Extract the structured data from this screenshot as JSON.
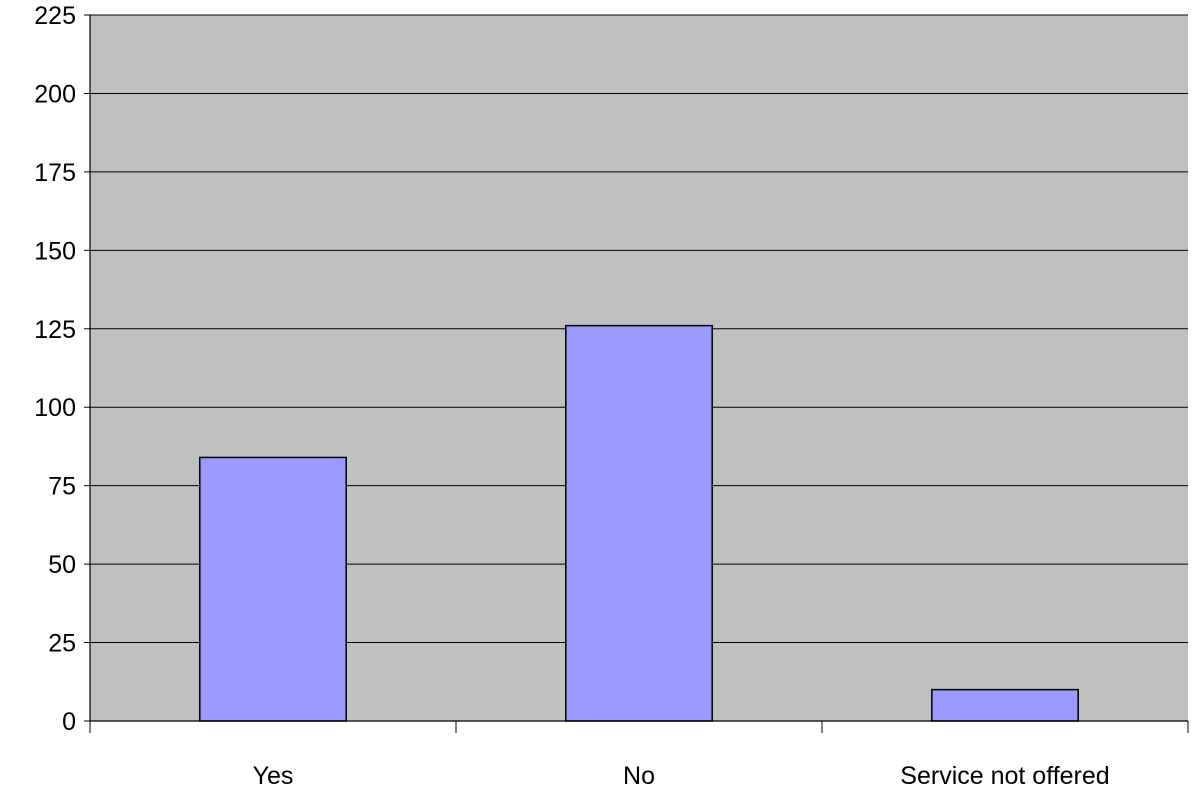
{
  "chart_data": {
    "type": "bar",
    "title": "",
    "xlabel": "",
    "ylabel": "",
    "categories": [
      "Yes",
      "No",
      "Service not offered"
    ],
    "values": [
      84,
      126,
      10
    ],
    "ylim": [
      0,
      225
    ],
    "yticks": [
      0,
      25,
      50,
      75,
      100,
      125,
      150,
      175,
      200,
      225
    ],
    "ytick_labels": [
      "0",
      "25",
      "50",
      "75",
      "100",
      "125",
      "150",
      "175",
      "200",
      "225"
    ],
    "grid": true,
    "legend": "none",
    "colors": {
      "plot_background": "#c0c0c0",
      "bar_fill": "#9999ff",
      "bar_stroke": "#000000",
      "gridline": "#000000"
    }
  }
}
